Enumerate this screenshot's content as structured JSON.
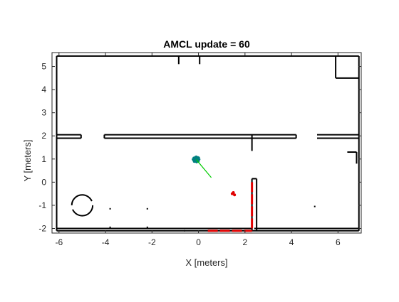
{
  "chart_data": {
    "type": "scatter",
    "title": "AMCL update = 60",
    "xlabel": "X [meters]",
    "ylabel": "Y [meters]",
    "xlim": [
      -6.3,
      7.0
    ],
    "ylim": [
      -2.2,
      5.6
    ],
    "xticks": [
      -6,
      -4,
      -2,
      0,
      2,
      4,
      6
    ],
    "yticks": [
      -2,
      -1,
      0,
      1,
      2,
      3,
      4,
      5
    ],
    "grid": false,
    "series": [
      {
        "role": "occupancy-map",
        "color": "#000000",
        "segments": [
          [
            [
              -6.1,
              5.45
            ],
            [
              6.9,
              5.45
            ]
          ],
          [
            [
              -6.1,
              5.45
            ],
            [
              -6.1,
              -2.1
            ]
          ],
          [
            [
              -6.1,
              -2.1
            ],
            [
              6.9,
              -2.1
            ]
          ],
          [
            [
              6.9,
              5.45
            ],
            [
              6.9,
              -2.1
            ]
          ],
          [
            [
              5.9,
              5.45
            ],
            [
              5.9,
              4.5
            ]
          ],
          [
            [
              5.9,
              4.5
            ],
            [
              6.9,
              4.5
            ]
          ],
          [
            [
              -6.1,
              2.05
            ],
            [
              -5.05,
              2.05
            ]
          ],
          [
            [
              -5.05,
              2.05
            ],
            [
              -5.05,
              1.9
            ]
          ],
          [
            [
              -6.1,
              1.9
            ],
            [
              -5.05,
              1.9
            ]
          ],
          [
            [
              -4.05,
              2.05
            ],
            [
              4.2,
              2.05
            ]
          ],
          [
            [
              -4.05,
              1.9
            ],
            [
              4.2,
              1.9
            ]
          ],
          [
            [
              -4.05,
              1.9
            ],
            [
              -4.05,
              2.05
            ]
          ],
          [
            [
              4.2,
              1.9
            ],
            [
              4.2,
              2.05
            ]
          ],
          [
            [
              5.1,
              2.05
            ],
            [
              6.9,
              2.05
            ]
          ],
          [
            [
              5.1,
              1.9
            ],
            [
              6.9,
              1.9
            ]
          ],
          [
            [
              2.3,
              0.15
            ],
            [
              2.3,
              -2.1
            ]
          ],
          [
            [
              2.5,
              0.15
            ],
            [
              2.5,
              -2.1
            ]
          ],
          [
            [
              2.3,
              0.15
            ],
            [
              2.5,
              0.15
            ]
          ],
          [
            [
              2.4,
              -2.0
            ],
            [
              6.9,
              -2.0
            ]
          ],
          [
            [
              -6.1,
              -2.0
            ],
            [
              2.3,
              -2.0
            ]
          ],
          [
            [
              6.4,
              1.3
            ],
            [
              6.8,
              1.3
            ]
          ],
          [
            [
              6.8,
              1.3
            ],
            [
              6.8,
              0.8
            ]
          ],
          [
            [
              -0.85,
              5.45
            ],
            [
              -0.85,
              5.1
            ]
          ],
          [
            [
              0.05,
              5.45
            ],
            [
              0.05,
              5.1
            ]
          ],
          [
            [
              2.3,
              2.05
            ],
            [
              2.3,
              1.35
            ]
          ]
        ],
        "circle": {
          "center": [
            -5.0,
            -1.0
          ],
          "radius": 0.45
        },
        "specks": [
          [
            -3.8,
            -1.15
          ],
          [
            -2.2,
            -1.15
          ],
          [
            -3.8,
            -1.95
          ],
          [
            -2.2,
            -1.95
          ],
          [
            5.0,
            -1.05
          ],
          [
            -0.6,
            -2.1
          ]
        ]
      },
      {
        "role": "laser-scan",
        "color": "#e00000",
        "segments": [
          [
            [
              0.4,
              -2.1
            ],
            [
              2.3,
              -2.1
            ]
          ],
          [
            [
              2.3,
              0.0
            ],
            [
              2.3,
              -2.1
            ]
          ]
        ],
        "points": [
          [
            1.45,
            -0.5
          ],
          [
            1.5,
            -0.45
          ],
          [
            1.55,
            -0.55
          ]
        ]
      },
      {
        "role": "particles",
        "color": "#008080",
        "center": [
          -0.1,
          0.98
        ],
        "count": 40
      },
      {
        "role": "heading",
        "color": "#00cc00",
        "from": [
          -0.1,
          0.98
        ],
        "to": [
          0.55,
          0.2
        ]
      }
    ]
  }
}
